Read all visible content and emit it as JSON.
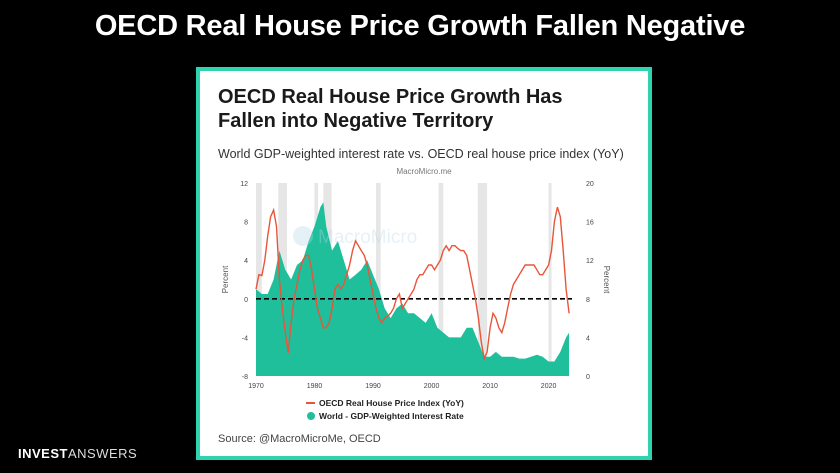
{
  "slide": {
    "title": "OECD Real House Price Growth Fallen Negative"
  },
  "brand": {
    "bold": "INVEST",
    "light": "ANSWERS"
  },
  "card": {
    "title_line1": "OECD Real House Price Growth Has",
    "title_line2": "Fallen into Negative Territory",
    "subtitle": "World GDP-weighted interest rate vs. OECD real house price index (YoY)",
    "watermark_small": "MacroMicro.me",
    "watermark_big": "MacroMicro",
    "source": "Source: @MacroMicroMe, OECD"
  },
  "colors": {
    "border": "#2ed3b0",
    "area": "#1fbf9b",
    "line": "#e8553a",
    "recession": "#e6e6e6"
  },
  "chart_data": {
    "type": "line+area",
    "title": "OECD Real House Price Growth Has Fallen into Negative Territory",
    "subtitle": "World GDP-weighted interest rate vs. OECD real house price index (YoY)",
    "ylabel_left": "Percent",
    "ylabel_right": "Percent",
    "ylim_left": [
      -8,
      12
    ],
    "ylim_right": [
      0,
      20
    ],
    "yticks_left": [
      "12",
      "8",
      "4",
      "0",
      "-4",
      "-8"
    ],
    "yticks_right": [
      "20",
      "16",
      "12",
      "8",
      "4",
      "0"
    ],
    "xlim": [
      1970,
      2024
    ],
    "xticks": [
      "1970",
      "1980",
      "1990",
      "2000",
      "2010",
      "2020"
    ],
    "reference_line": {
      "axis": "left",
      "y": 0,
      "style": "dashed"
    },
    "recessions": [
      [
        1970,
        1971
      ],
      [
        1973.8,
        1975.3
      ],
      [
        1980,
        1980.6
      ],
      [
        1981.5,
        1982.9
      ],
      [
        1990.5,
        1991.3
      ],
      [
        2001.2,
        2002
      ],
      [
        2007.9,
        2009.5
      ],
      [
        2020,
        2020.5
      ]
    ],
    "legend": {
      "placement": "bottom"
    },
    "series": [
      {
        "name": "OECD Real House Price Index (YoY)",
        "axis": "left",
        "style": "line",
        "points": [
          [
            1970,
            1.0
          ],
          [
            1970.5,
            2.5
          ],
          [
            1971,
            2.4
          ],
          [
            1971.5,
            4.0
          ],
          [
            1972,
            6.5
          ],
          [
            1972.5,
            8.5
          ],
          [
            1973,
            9.2
          ],
          [
            1973.5,
            7.5
          ],
          [
            1974,
            2.0
          ],
          [
            1974.5,
            -1.0
          ],
          [
            1975,
            -3.5
          ],
          [
            1975.5,
            -5.6
          ],
          [
            1976,
            -2.5
          ],
          [
            1976.5,
            0.0
          ],
          [
            1977,
            1.5
          ],
          [
            1977.5,
            3.0
          ],
          [
            1978,
            4.0
          ],
          [
            1978.5,
            4.5
          ],
          [
            1979,
            4.5
          ],
          [
            1979.5,
            3.0
          ],
          [
            1980,
            1.0
          ],
          [
            1980.5,
            -1.0
          ],
          [
            1981,
            -2.0
          ],
          [
            1981.5,
            -3.0
          ],
          [
            1982,
            -3.0
          ],
          [
            1982.5,
            -2.5
          ],
          [
            1983,
            -1.0
          ],
          [
            1983.5,
            1.0
          ],
          [
            1984,
            1.5
          ],
          [
            1984.5,
            1.0
          ],
          [
            1985,
            1.5
          ],
          [
            1985.5,
            2.5
          ],
          [
            1986,
            3.5
          ],
          [
            1986.5,
            5.0
          ],
          [
            1987,
            6.0
          ],
          [
            1987.5,
            5.5
          ],
          [
            1988,
            5.0
          ],
          [
            1988.5,
            4.5
          ],
          [
            1989,
            3.5
          ],
          [
            1989.5,
            2.0
          ],
          [
            1990,
            0.5
          ],
          [
            1990.5,
            -1.0
          ],
          [
            1991,
            -2.0
          ],
          [
            1991.5,
            -2.5
          ],
          [
            1992,
            -2.0
          ],
          [
            1992.5,
            -1.8
          ],
          [
            1993,
            -1.5
          ],
          [
            1993.5,
            -1.0
          ],
          [
            1994,
            0.0
          ],
          [
            1994.5,
            0.5
          ],
          [
            1995,
            -1.0
          ],
          [
            1995.5,
            -0.5
          ],
          [
            1996,
            0.0
          ],
          [
            1996.5,
            0.5
          ],
          [
            1997,
            1.0
          ],
          [
            1997.5,
            2.0
          ],
          [
            1998,
            2.5
          ],
          [
            1998.5,
            2.5
          ],
          [
            1999,
            3.0
          ],
          [
            1999.5,
            3.5
          ],
          [
            2000,
            3.5
          ],
          [
            2000.5,
            3.0
          ],
          [
            2001,
            3.5
          ],
          [
            2001.5,
            4.0
          ],
          [
            2002,
            5.0
          ],
          [
            2002.5,
            5.5
          ],
          [
            2003,
            5.0
          ],
          [
            2003.5,
            5.5
          ],
          [
            2004,
            5.5
          ],
          [
            2004.5,
            5.2
          ],
          [
            2005,
            5.0
          ],
          [
            2005.5,
            5.0
          ],
          [
            2006,
            4.5
          ],
          [
            2006.5,
            3.0
          ],
          [
            2007,
            1.5
          ],
          [
            2007.5,
            0.0
          ],
          [
            2008,
            -2.0
          ],
          [
            2008.5,
            -4.5
          ],
          [
            2009,
            -6.2
          ],
          [
            2009.5,
            -5.5
          ],
          [
            2010,
            -3.0
          ],
          [
            2010.5,
            -1.5
          ],
          [
            2011,
            -2.0
          ],
          [
            2011.5,
            -3.0
          ],
          [
            2012,
            -3.5
          ],
          [
            2012.5,
            -2.5
          ],
          [
            2013,
            -1.0
          ],
          [
            2013.5,
            0.5
          ],
          [
            2014,
            1.5
          ],
          [
            2014.5,
            2.0
          ],
          [
            2015,
            2.5
          ],
          [
            2015.5,
            3.0
          ],
          [
            2016,
            3.5
          ],
          [
            2016.5,
            3.5
          ],
          [
            2017,
            3.5
          ],
          [
            2017.5,
            3.5
          ],
          [
            2018,
            3.0
          ],
          [
            2018.5,
            2.5
          ],
          [
            2019,
            2.5
          ],
          [
            2019.5,
            3.0
          ],
          [
            2020,
            3.5
          ],
          [
            2020.5,
            5.0
          ],
          [
            2021,
            8.0
          ],
          [
            2021.5,
            9.5
          ],
          [
            2022,
            8.5
          ],
          [
            2022.5,
            5.0
          ],
          [
            2023,
            1.0
          ],
          [
            2023.5,
            -1.5
          ]
        ]
      },
      {
        "name": "World - GDP-Weighted Interest Rate",
        "axis": "right",
        "style": "area",
        "points": [
          [
            1970,
            9.0
          ],
          [
            1971,
            8.5
          ],
          [
            1972,
            8.5
          ],
          [
            1973,
            10.0
          ],
          [
            1974,
            13.0
          ],
          [
            1975,
            11.0
          ],
          [
            1976,
            10.0
          ],
          [
            1977,
            11.5
          ],
          [
            1978,
            12.0
          ],
          [
            1979,
            14.0
          ],
          [
            1980,
            15.5
          ],
          [
            1981,
            17.5
          ],
          [
            1981.5,
            18.0
          ],
          [
            1982,
            15.5
          ],
          [
            1983,
            13.0
          ],
          [
            1984,
            14.0
          ],
          [
            1985,
            12.0
          ],
          [
            1986,
            10.0
          ],
          [
            1987,
            10.5
          ],
          [
            1988,
            11.0
          ],
          [
            1989,
            12.0
          ],
          [
            1990,
            10.5
          ],
          [
            1991,
            9.0
          ],
          [
            1992,
            7.0
          ],
          [
            1993,
            6.0
          ],
          [
            1994,
            7.0
          ],
          [
            1995,
            7.5
          ],
          [
            1996,
            6.5
          ],
          [
            1997,
            6.5
          ],
          [
            1998,
            6.0
          ],
          [
            1999,
            5.5
          ],
          [
            2000,
            6.5
          ],
          [
            2001,
            5.0
          ],
          [
            2002,
            4.5
          ],
          [
            2003,
            4.0
          ],
          [
            2004,
            4.0
          ],
          [
            2005,
            4.0
          ],
          [
            2006,
            5.0
          ],
          [
            2007,
            5.0
          ],
          [
            2008,
            3.5
          ],
          [
            2009,
            2.0
          ],
          [
            2010,
            2.0
          ],
          [
            2011,
            2.5
          ],
          [
            2012,
            2.0
          ],
          [
            2013,
            2.0
          ],
          [
            2014,
            2.0
          ],
          [
            2015,
            1.8
          ],
          [
            2016,
            1.8
          ],
          [
            2017,
            2.0
          ],
          [
            2018,
            2.2
          ],
          [
            2019,
            2.0
          ],
          [
            2020,
            1.5
          ],
          [
            2021,
            1.5
          ],
          [
            2022,
            2.5
          ],
          [
            2023,
            4.0
          ],
          [
            2023.5,
            4.5
          ]
        ]
      }
    ]
  }
}
